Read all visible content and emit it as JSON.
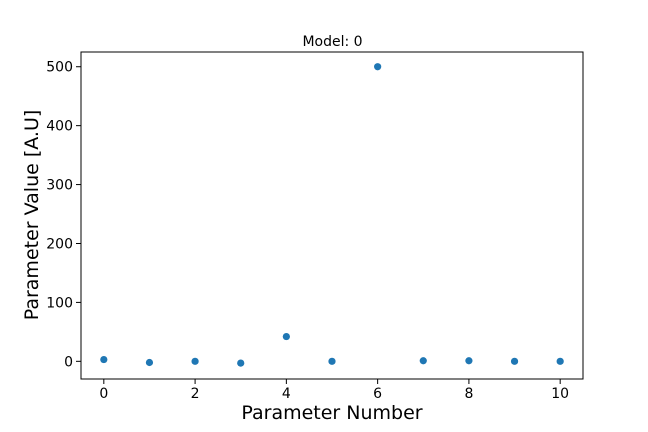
{
  "chart_data": {
    "type": "scatter",
    "title": "Model: 0",
    "xlabel": "Parameter Number",
    "ylabel": "Parameter Value [A.U]",
    "xlim": [
      -0.5,
      10.5
    ],
    "ylim": [
      -30,
      525
    ],
    "xticks": [
      "0",
      "2",
      "4",
      "6",
      "8",
      "10"
    ],
    "yticks": [
      "0",
      "100",
      "200",
      "300",
      "400",
      "500"
    ],
    "grid": false,
    "legend": "none",
    "series": [
      {
        "color": "#1f77b4",
        "x": [
          0,
          1,
          2,
          3,
          4,
          5,
          6,
          7,
          8,
          9,
          10
        ],
        "y": [
          3,
          -2,
          0,
          -3,
          42,
          0,
          500,
          1,
          1,
          0,
          0
        ]
      }
    ]
  }
}
